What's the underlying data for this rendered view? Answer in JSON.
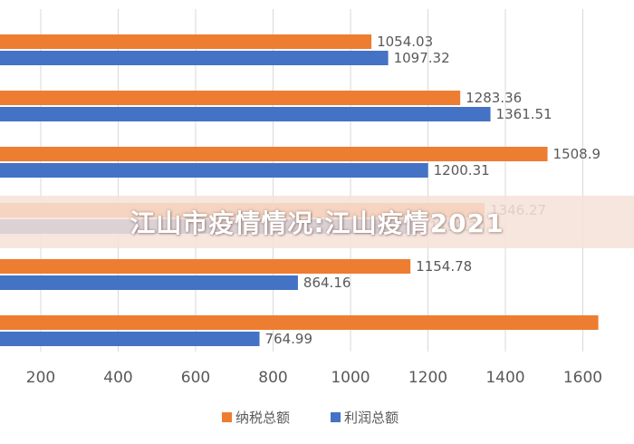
{
  "banner": {
    "text": "江山市疫情情况:江山疫情2021"
  },
  "chart_data": {
    "type": "bar",
    "orientation": "horizontal",
    "title": "",
    "xlabel": "",
    "ylabel": "",
    "xlim": [
      0,
      1650
    ],
    "x_ticks": [
      200,
      400,
      600,
      800,
      1000,
      1200,
      1400,
      1600
    ],
    "grid": true,
    "legend_position": "bottom",
    "series": [
      {
        "name": "纳税总额",
        "color": "#ED7D31",
        "values": [
          1054.03,
          1283.36,
          1508.9,
          1346.27,
          1154.78,
          1640
        ]
      },
      {
        "name": "利润总额",
        "color": "#4472C4",
        "values": [
          1097.32,
          1361.51,
          1200.31,
          1190.2,
          864.16,
          764.99
        ]
      }
    ],
    "value_labels": [
      [
        "1054.03",
        "1097.32"
      ],
      [
        "1283.36",
        "1361.51"
      ],
      [
        "1508.9",
        "1200.31"
      ],
      [
        "1346.27",
        "1190.20"
      ],
      [
        "1154.78",
        "864.16"
      ],
      [
        "",
        "764.99"
      ]
    ]
  }
}
